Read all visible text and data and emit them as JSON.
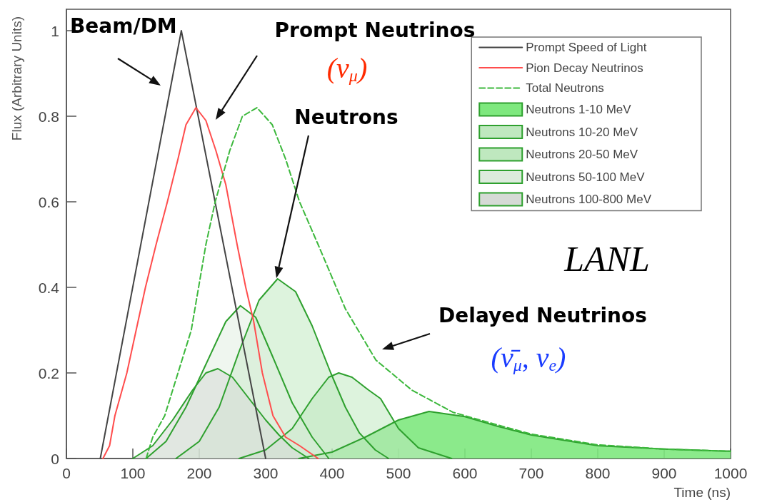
{
  "chart_data": {
    "type": "line",
    "xlabel": "Time (ns)",
    "ylabel": "Flux (Arbitrary Units)",
    "xlim": [
      0,
      1000
    ],
    "xticks": [
      0,
      100,
      200,
      300,
      400,
      500,
      600,
      700,
      800,
      900,
      1000
    ],
    "ylim": [
      0,
      1.05
    ],
    "yticks": [
      0,
      0.2,
      0.4,
      0.6,
      0.8,
      1
    ],
    "grid": false,
    "legend": "top right",
    "marker": "none",
    "line_style": "solid",
    "series": [
      {
        "name": "Prompt Speed of Light",
        "color": "#444444",
        "x": [
          51,
          173,
          300
        ],
        "values": [
          0,
          1.0,
          0
        ]
      },
      {
        "name": "Pion Decay Neutrinos",
        "color": "#ff4d4d",
        "x": [
          55,
          65,
          73,
          91,
          105,
          119,
          135,
          152,
          168,
          180,
          195,
          210,
          225,
          240,
          257,
          270,
          282,
          295,
          311,
          330,
          351,
          379
        ],
        "values": [
          0,
          0.03,
          0.1,
          0.2,
          0.3,
          0.4,
          0.5,
          0.6,
          0.7,
          0.78,
          0.82,
          0.79,
          0.72,
          0.64,
          0.5,
          0.4,
          0.32,
          0.2,
          0.1,
          0.05,
          0.03,
          0
        ]
      },
      {
        "name": "Total Neutrons",
        "line_style": "dashed",
        "color": "#3cb83c",
        "x": [
          120,
          130,
          148,
          168,
          188,
          210,
          224,
          246,
          265,
          287,
          310,
          330,
          351,
          379,
          420,
          466,
          520,
          582,
          650,
          700,
          800,
          900,
          1000
        ],
        "values": [
          0,
          0.05,
          0.1,
          0.2,
          0.3,
          0.5,
          0.6,
          0.72,
          0.8,
          0.82,
          0.78,
          0.7,
          0.6,
          0.5,
          0.35,
          0.23,
          0.16,
          0.108,
          0.078,
          0.057,
          0.032,
          0.022,
          0.017
        ]
      },
      {
        "name": "Neutrons 1-10 MeV",
        "type": "area",
        "color": "#2ea02e",
        "x": [
          350,
          400,
          450,
          500,
          546,
          600,
          650,
          700,
          800,
          900,
          1000
        ],
        "values": [
          0,
          0.015,
          0.05,
          0.09,
          0.11,
          0.098,
          0.075,
          0.055,
          0.03,
          0.022,
          0.017
        ]
      },
      {
        "name": "Neutrons 10-20 MeV",
        "type": "area",
        "color": "#2ea02e",
        "x": [
          260,
          300,
          340,
          370,
          395,
          410,
          430,
          455,
          473,
          500,
          530,
          580
        ],
        "values": [
          0,
          0.02,
          0.07,
          0.14,
          0.19,
          0.2,
          0.19,
          0.16,
          0.14,
          0.07,
          0.025,
          0
        ]
      },
      {
        "name": "Neutrons 20-50 MeV",
        "type": "area",
        "color": "#2ea02e",
        "x": [
          165,
          200,
          230,
          260,
          290,
          318,
          345,
          370,
          398,
          420,
          441,
          465,
          485
        ],
        "values": [
          0,
          0.04,
          0.12,
          0.25,
          0.37,
          0.42,
          0.39,
          0.31,
          0.2,
          0.12,
          0.06,
          0.02,
          0
        ]
      },
      {
        "name": "Neutrons 50-100 MeV",
        "type": "area",
        "color": "#2ea02e",
        "x": [
          120,
          150,
          180,
          210,
          240,
          262,
          285,
          310,
          340,
          370,
          395
        ],
        "values": [
          0,
          0.04,
          0.12,
          0.22,
          0.32,
          0.357,
          0.33,
          0.24,
          0.13,
          0.05,
          0
        ]
      },
      {
        "name": "Neutrons 100-800 MeV",
        "type": "area",
        "color": "#2ea02e",
        "x": [
          100,
          130,
          160,
          190,
          210,
          228,
          250,
          280,
          300,
          320,
          340,
          365
        ],
        "values": [
          0,
          0.03,
          0.09,
          0.16,
          0.2,
          0.21,
          0.19,
          0.13,
          0.09,
          0.055,
          0.025,
          0
        ]
      }
    ],
    "annotations": [
      "Beam/DM",
      "Prompt Neutrinos",
      "(ν$_{μ}$)",
      "Neutrons",
      "Delayed Neutrinos",
      "(ν̄$_{μ}$, ν$_{e}$)",
      "LANL"
    ]
  }
}
